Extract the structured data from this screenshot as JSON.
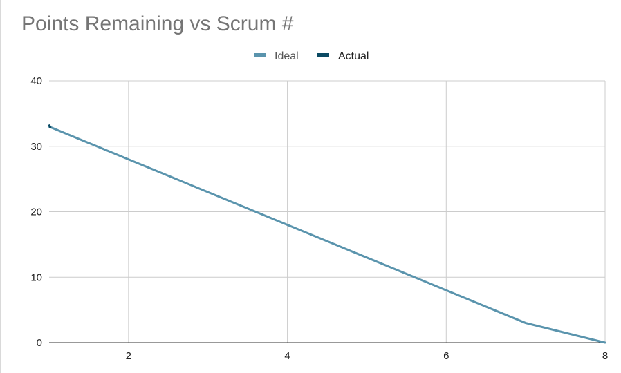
{
  "chart_data": {
    "type": "line",
    "title": "Points Remaining vs Scrum #",
    "xlabel": "",
    "ylabel": "",
    "xlim": [
      1,
      8
    ],
    "ylim": [
      0,
      40
    ],
    "x_ticks": [
      2,
      4,
      6,
      8
    ],
    "y_ticks": [
      0,
      10,
      20,
      30,
      40
    ],
    "grid": true,
    "legend_position": "top",
    "series": [
      {
        "name": "Ideal",
        "color": "#5a94ad",
        "x": [
          1,
          2,
          3,
          4,
          5,
          6,
          7,
          8
        ],
        "y": [
          33,
          28,
          23,
          18,
          13,
          8,
          3,
          0
        ]
      },
      {
        "name": "Actual",
        "color": "#0b4a63",
        "x": [
          1
        ],
        "y": [
          33
        ]
      }
    ]
  }
}
